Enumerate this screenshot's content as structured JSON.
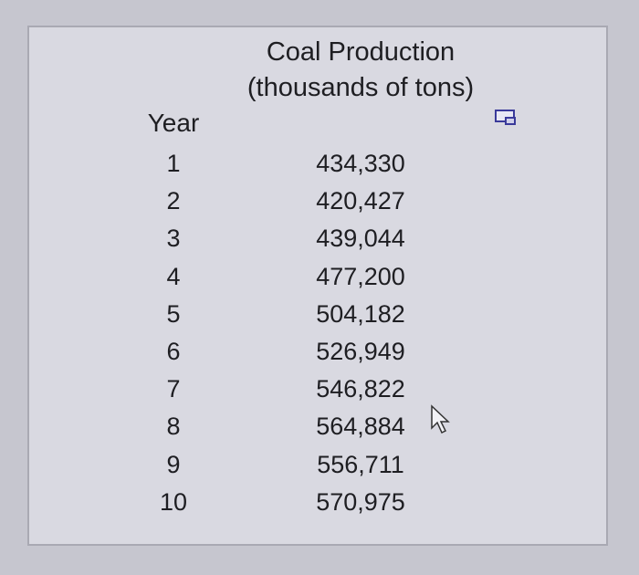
{
  "table": {
    "header": [
      "Year",
      "Coal Production (thousands of tons)"
    ],
    "rows": [
      [
        "1",
        "434,330"
      ],
      [
        "2",
        "420,427"
      ],
      [
        "3",
        "439,044"
      ],
      [
        "4",
        "477,200"
      ],
      [
        "5",
        "504,182"
      ],
      [
        "6",
        "526,949"
      ],
      [
        "7",
        "546,822"
      ],
      [
        "8",
        "564,884"
      ],
      [
        "9",
        "556,711"
      ],
      [
        "10",
        "570,975"
      ]
    ]
  }
}
